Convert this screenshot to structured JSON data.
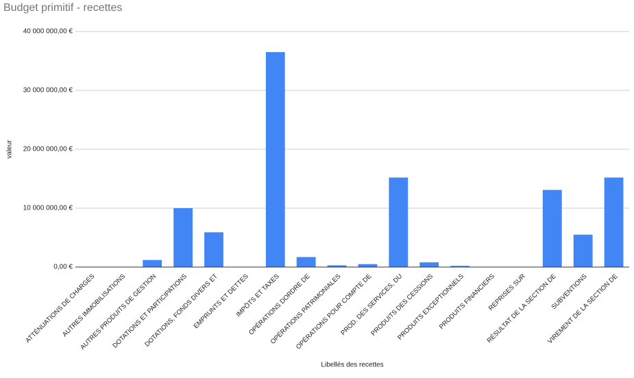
{
  "chart_data": {
    "type": "bar",
    "title": "Budget primitif - recettes",
    "x_label": "Libellés des recettes",
    "y_label": "valeur",
    "categories": [
      "ATTÉNUATIONS DE CHARGES",
      "AUTRES IMMOBILISATIONS",
      "AUTRES PRODUITS DE GESTION",
      "DOTATIONS ET PARTICIPATIONS",
      "DOTATIONS, FONDS DIVERS ET",
      "EMPRUNTS ET DETTES",
      "IMPÔTS ET TAXES",
      "OPÉRATIONS DORDRE DE",
      "OPÉRATIONS PATRIMONIALES",
      "OPÉRATIONS POUR COMPTE DE",
      "PROD. DES SERVICES, DU",
      "PRODUITS DES CESSIONS",
      "PRODUITS EXCEPTIONNELS",
      "PRODUITS FINANCIERS",
      "REPRISES SUR",
      "RÉSULTAT DE LA SECTION DE",
      "SUBVENTIONS",
      "VIREMENT DE LA SECTION DE"
    ],
    "values": [
      50000,
      30000,
      1200000,
      10000000,
      5900000,
      0,
      36500000,
      1700000,
      300000,
      500000,
      15200000,
      800000,
      200000,
      10000,
      0,
      13100000,
      5500000,
      15200000
    ],
    "color": "#4285f4",
    "ylim": [
      0,
      40000000
    ],
    "yticks": [
      {
        "value": 0,
        "label": "0,00 €"
      },
      {
        "value": 10000000,
        "label": "10 000 000,00 €"
      },
      {
        "value": 20000000,
        "label": "20 000 000,00 €"
      },
      {
        "value": 30000000,
        "label": "30 000 000,00 €"
      },
      {
        "value": 40000000,
        "label": "40 000 000,00 €"
      }
    ],
    "grid": true
  }
}
